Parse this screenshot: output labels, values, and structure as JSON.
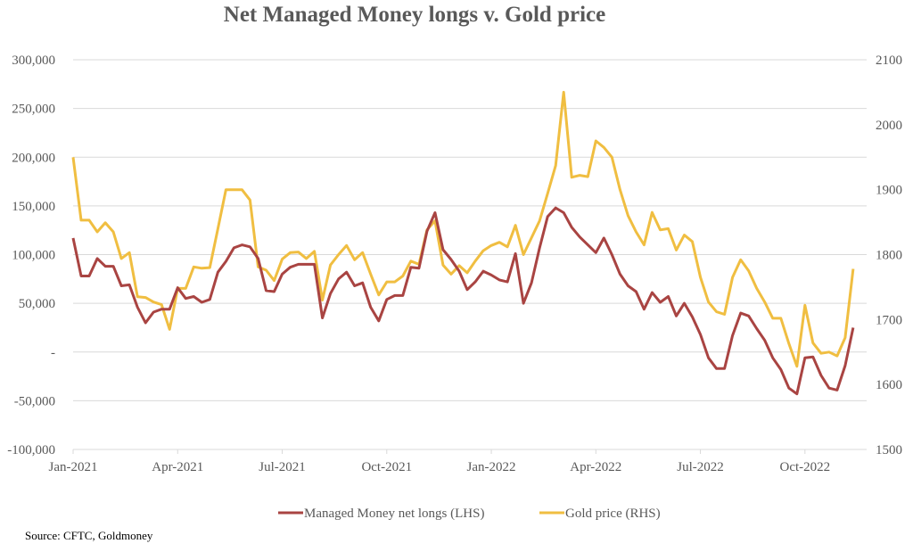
{
  "chart_data": {
    "type": "line",
    "title": "Net Managed Money longs v. Gold price",
    "source": "Source: CFTC, Goldmoney",
    "xlabel": "",
    "ylabel": "",
    "y2label": "",
    "grid": true,
    "legend_position": "bottom",
    "x_ticks": [
      "Jan-2021",
      "Apr-2021",
      "Jul-2021",
      "Oct-2021",
      "Jan-2022",
      "Apr-2022",
      "Jul-2022",
      "Oct-2022"
    ],
    "x_tick_week_index": [
      0,
      13,
      26,
      39,
      52,
      65,
      78,
      91
    ],
    "y_left": {
      "ylim": [
        -100000,
        300000
      ],
      "ticks": [
        300000,
        250000,
        200000,
        150000,
        100000,
        50000,
        0,
        -50000,
        -100000
      ],
      "tick_labels": [
        "300,000",
        "250,000",
        "200,000",
        "150,000",
        "100,000",
        "50,000",
        "-",
        "-50,000",
        "-100,000"
      ]
    },
    "y_right": {
      "ylim": [
        1500,
        2100
      ],
      "ticks": [
        2100,
        2000,
        1900,
        1800,
        1700,
        1600,
        1500
      ],
      "tick_labels": [
        "2100",
        "2000",
        "1900",
        "1800",
        "1700",
        "1600",
        "1500"
      ]
    },
    "series": [
      {
        "name": "Managed Money net longs (LHS)",
        "axis": "left",
        "color": "#A94442",
        "values": [
          117000,
          78000,
          78000,
          96000,
          88000,
          88000,
          68000,
          69000,
          46000,
          30000,
          41000,
          44000,
          44000,
          66000,
          55000,
          57000,
          51000,
          54000,
          82000,
          93000,
          107000,
          110000,
          108000,
          96000,
          63000,
          62000,
          80000,
          87000,
          90000,
          90000,
          90000,
          35000,
          60000,
          75000,
          82000,
          68000,
          71000,
          46000,
          32000,
          54000,
          58000,
          58000,
          87000,
          86000,
          124000,
          143000,
          105000,
          95000,
          83000,
          64000,
          72000,
          83000,
          79000,
          74000,
          72000,
          101000,
          50000,
          71000,
          107000,
          139000,
          148000,
          143000,
          128000,
          118000,
          110000,
          102000,
          117000,
          100000,
          80000,
          68000,
          62000,
          44000,
          61000,
          51000,
          57000,
          37000,
          50000,
          36000,
          18000,
          -6000,
          -17000,
          -17000,
          17000,
          40000,
          37000,
          24000,
          12000,
          -6000,
          -18000,
          -37000,
          -43000,
          -6000,
          -5000,
          -24000,
          -37000,
          -39000,
          -14000,
          25000
        ]
      },
      {
        "name": "Gold price (RHS)",
        "axis": "right",
        "color": "#F0BE41",
        "values": [
          1950,
          1853,
          1853,
          1835,
          1849,
          1835,
          1794,
          1803,
          1735,
          1734,
          1727,
          1723,
          1685,
          1748,
          1748,
          1781,
          1779,
          1780,
          1840,
          1900,
          1900,
          1900,
          1884,
          1781,
          1776,
          1760,
          1793,
          1803,
          1804,
          1794,
          1805,
          1730,
          1784,
          1800,
          1814,
          1792,
          1803,
          1770,
          1738,
          1758,
          1758,
          1767,
          1790,
          1785,
          1838,
          1852,
          1784,
          1770,
          1783,
          1772,
          1790,
          1806,
          1814,
          1819,
          1812,
          1845,
          1800,
          1826,
          1852,
          1894,
          1937,
          2050,
          1919,
          1922,
          1920,
          1975,
          1965,
          1950,
          1900,
          1860,
          1835,
          1815,
          1865,
          1838,
          1840,
          1807,
          1830,
          1820,
          1765,
          1727,
          1712,
          1708,
          1765,
          1792,
          1775,
          1748,
          1727,
          1702,
          1702,
          1663,
          1628,
          1722,
          1664,
          1648,
          1650,
          1644,
          1672,
          1778
        ]
      }
    ]
  }
}
